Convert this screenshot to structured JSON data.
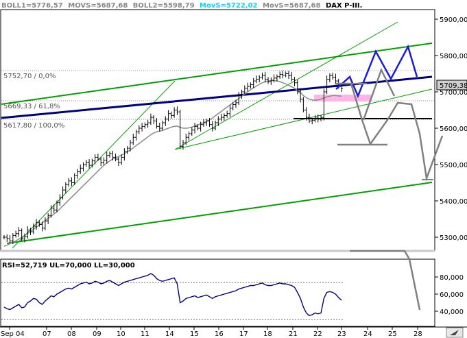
{
  "header": {
    "boll1": "BOLL1=5776,57",
    "movs1": "MOVS=5687,68",
    "boll2": "BOLL2=5598,79",
    "movs2": "MovS=5722,02",
    "movs3": "MovS=5687,68",
    "title": "DAX P-III."
  },
  "colors": {
    "price": "#000000",
    "trendline": "#000080",
    "channel": "#00a000",
    "moving_avg": "#909090",
    "projection_blue": "#1a1adc",
    "projection_gray": "#808080",
    "pink_zone": "#ffb6e6",
    "movs_highlight": "#00e0ff",
    "rsi": "#000080",
    "price_label_bg": "#cfcfcf"
  },
  "price_label": "5709,38",
  "fib_levels": [
    {
      "label": "5752,70 / 0,0%",
      "value": 5752.7
    },
    {
      "label": "5669,33 / 61,8%",
      "value": 5669.33
    },
    {
      "label": "5617,80 / 100,0%",
      "value": 5617.8
    }
  ],
  "rsi_header": "RSI=52,719 UL=70,000 LL=30,000",
  "chart_data": {
    "type": "line",
    "y_ticks": [
      "5900,00",
      "5800,00",
      "5700,00",
      "5600,00",
      "5500,00",
      "5400,00",
      "5300,00"
    ],
    "y_tick_values": [
      5900,
      5800,
      5700,
      5600,
      5500,
      5400,
      5300
    ],
    "ylim": [
      5240,
      5935
    ],
    "x_ticks": [
      "Sep 04",
      "07",
      "08",
      "09",
      "10",
      "11",
      "14",
      "15",
      "16",
      "17",
      "18",
      "21",
      "22",
      "23",
      "24",
      "25",
      "28"
    ],
    "rsi": {
      "y_ticks": [
        "80,000",
        "60,000",
        "40,000"
      ],
      "y_tick_values": [
        80,
        60,
        40
      ],
      "ylim": [
        25,
        90
      ],
      "upper": 70,
      "lower": 30
    },
    "price": [
      5300,
      5296,
      5290,
      5305,
      5310,
      5318,
      5295,
      5302,
      5320,
      5315,
      5330,
      5340,
      5335,
      5325,
      5345,
      5360,
      5380,
      5375,
      5395,
      5410,
      5430,
      5445,
      5455,
      5450,
      5470,
      5480,
      5490,
      5500,
      5505,
      5498,
      5510,
      5520,
      5515,
      5505,
      5512,
      5525,
      5530,
      5520,
      5515,
      5505,
      5520,
      5535,
      5545,
      5560,
      5575,
      5590,
      5600,
      5605,
      5610,
      5615,
      5630,
      5620,
      5605,
      5600,
      5615,
      5625,
      5640,
      5635,
      5650,
      5645,
      5550,
      5560,
      5575,
      5585,
      5595,
      5605,
      5600,
      5610,
      5615,
      5620,
      5610,
      5600,
      5615,
      5625,
      5630,
      5635,
      5640,
      5655,
      5665,
      5670,
      5690,
      5700,
      5710,
      5715,
      5720,
      5730,
      5735,
      5740,
      5745,
      5735,
      5728,
      5732,
      5738,
      5742,
      5748,
      5746,
      5750,
      5745,
      5735,
      5725,
      5700,
      5680,
      5650,
      5630,
      5620,
      5622,
      5628,
      5625,
      5630,
      5700,
      5735,
      5745,
      5740,
      5730,
      5715,
      5709
    ],
    "moving_avg": [
      5275,
      5278,
      5282,
      5286,
      5290,
      5295,
      5300,
      5305,
      5310,
      5316,
      5322,
      5328,
      5334,
      5340,
      5346,
      5352,
      5358,
      5364,
      5370,
      5378,
      5386,
      5394,
      5402,
      5410,
      5418,
      5426,
      5434,
      5442,
      5450,
      5458,
      5466,
      5474,
      5482,
      5490,
      5498,
      5504,
      5510,
      5515,
      5519,
      5522,
      5526,
      5530,
      5535,
      5540,
      5546,
      5552,
      5558,
      5564,
      5570,
      5576,
      5582,
      5587,
      5590,
      5592,
      5594,
      5597,
      5600,
      5603,
      5605,
      5606,
      5602,
      5600,
      5600,
      5601,
      5603,
      5606,
      5609,
      5612,
      5615,
      5619,
      5623,
      5628,
      5634,
      5640,
      5646,
      5652,
      5658,
      5664,
      5670,
      5676,
      5682,
      5688,
      5694,
      5700,
      5706,
      5711,
      5716,
      5721,
      5725,
      5728,
      5730,
      5731,
      5731,
      5730,
      5728,
      5725,
      5722,
      5718,
      5714,
      5710,
      5705,
      5698,
      5690,
      5684,
      5680,
      5678,
      5677,
      5678,
      5680,
      5683,
      5686,
      5688,
      5690,
      5690,
      5689,
      5688
    ],
    "rsi_values": [
      45,
      43,
      42,
      44,
      46,
      48,
      44,
      45,
      50,
      52,
      55,
      54,
      50,
      48,
      52,
      55,
      58,
      57,
      60,
      62,
      64,
      66,
      67,
      66,
      68,
      70,
      72,
      73,
      74,
      72,
      73,
      75,
      74,
      72,
      73,
      75,
      76,
      74,
      72,
      70,
      72,
      74,
      75,
      76,
      77,
      78,
      79,
      80,
      81,
      82,
      84,
      82,
      78,
      76,
      75,
      76,
      77,
      78,
      79,
      72,
      50,
      52,
      55,
      56,
      57,
      58,
      56,
      57,
      58,
      59,
      57,
      55,
      57,
      58,
      59,
      60,
      61,
      62,
      63,
      64,
      66,
      67,
      68,
      69,
      70,
      70,
      71,
      72,
      73,
      71,
      70,
      70,
      71,
      72,
      73,
      72,
      72,
      71,
      70,
      68,
      62,
      55,
      45,
      38,
      35,
      36,
      38,
      37,
      38,
      55,
      62,
      63,
      62,
      60,
      56,
      53
    ]
  }
}
